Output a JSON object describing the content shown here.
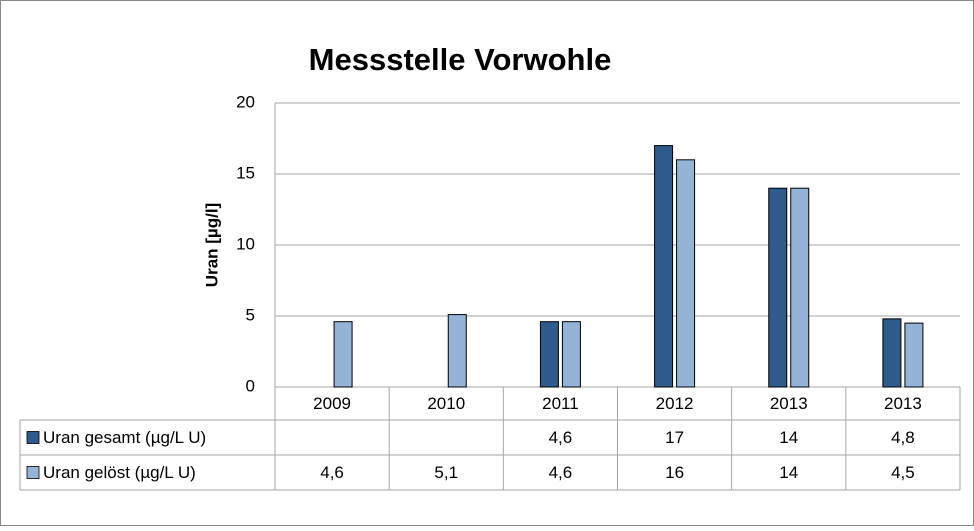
{
  "chart_data": {
    "type": "bar",
    "title": "Messstelle Vorwohle",
    "y_label": "Uran [µg/l]",
    "categories": [
      "2009",
      "2010",
      "2011",
      "2012",
      "2013",
      "2013"
    ],
    "series": [
      {
        "name": "Uran gesamt (µg/L U)",
        "color": "#2e5a8c",
        "values": [
          null,
          null,
          4.6,
          17,
          14,
          4.8
        ],
        "value_labels": [
          null,
          null,
          "4,6",
          "17",
          "14",
          "4,8"
        ]
      },
      {
        "name": "Uran gelöst (µg/L U)",
        "color": "#95b3d7",
        "values": [
          4.6,
          5.1,
          4.6,
          16,
          14,
          4.5
        ],
        "value_labels": [
          "4,6",
          "5,1",
          "4,6",
          "16",
          "14",
          "4,5"
        ]
      }
    ],
    "ylim": [
      0,
      20
    ],
    "yticks": [
      0,
      5,
      10,
      15,
      20
    ],
    "grid": true
  }
}
